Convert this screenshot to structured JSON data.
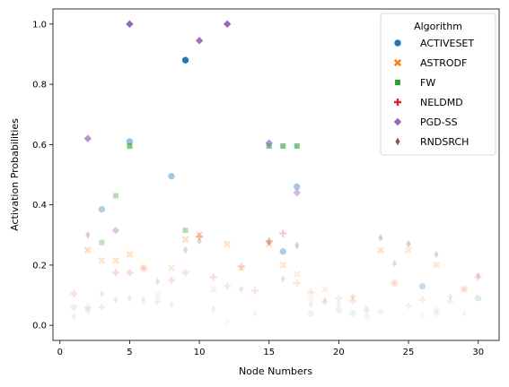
{
  "chart_data": {
    "type": "scatter",
    "xlabel": "Node Numbers",
    "ylabel": "Activation Probabilities",
    "xlim": [
      -0.5,
      31.5
    ],
    "ylim": [
      -0.05,
      1.05
    ],
    "xticks": [
      0,
      5,
      10,
      15,
      20,
      25,
      30
    ],
    "yticks": [
      0.0,
      0.2,
      0.4,
      0.6,
      0.8,
      1.0
    ],
    "grid": false,
    "legend": {
      "title": "Algorithm",
      "placement": "top-right"
    },
    "series": [
      {
        "name": "ACTIVESET",
        "marker": "circle",
        "color": "#1f77b4",
        "x": [
          1,
          2,
          3,
          5,
          8,
          9,
          16,
          17,
          18,
          20,
          21,
          22,
          26,
          27,
          30
        ],
        "y": [
          0.06,
          0.05,
          0.385,
          0.61,
          0.495,
          0.88,
          0.245,
          0.46,
          0.04,
          0.05,
          0.04,
          0.03,
          0.13,
          0.04,
          0.09
        ],
        "alpha": [
          0.1,
          0.08,
          0.35,
          0.45,
          0.4,
          1.0,
          0.35,
          0.4,
          0.08,
          0.08,
          0.08,
          0.06,
          0.25,
          0.06,
          0.15
        ]
      },
      {
        "name": "ASTRODF",
        "marker": "x",
        "color": "#ff7f0e",
        "x": [
          2,
          3,
          4,
          5,
          6,
          7,
          8,
          9,
          10,
          11,
          12,
          13,
          15,
          16,
          17,
          18,
          19,
          21,
          23,
          24,
          25,
          27,
          29
        ],
        "y": [
          0.25,
          0.215,
          0.215,
          0.235,
          0.19,
          0.1,
          0.19,
          0.285,
          0.3,
          0.12,
          0.27,
          0.19,
          0.27,
          0.2,
          0.17,
          0.09,
          0.12,
          0.09,
          0.25,
          0.14,
          0.25,
          0.2,
          0.12
        ],
        "alpha": [
          0.25,
          0.2,
          0.2,
          0.22,
          0.18,
          0.1,
          0.15,
          0.25,
          0.25,
          0.12,
          0.22,
          0.15,
          0.22,
          0.18,
          0.15,
          0.1,
          0.12,
          0.1,
          0.2,
          0.12,
          0.18,
          0.18,
          0.12
        ]
      },
      {
        "name": "FW",
        "marker": "square",
        "color": "#2ca02c",
        "x": [
          3,
          4,
          5,
          9,
          15,
          16,
          17
        ],
        "y": [
          0.275,
          0.43,
          0.595,
          0.315,
          0.595,
          0.595,
          0.595
        ],
        "alpha": [
          0.3,
          0.35,
          0.6,
          0.35,
          0.6,
          0.6,
          0.6
        ]
      },
      {
        "name": "NELDMD",
        "marker": "plus",
        "color": "#d62728",
        "x": [
          1,
          2,
          3,
          4,
          5,
          6,
          7,
          8,
          9,
          10,
          11,
          12,
          13,
          14,
          15,
          16,
          17,
          18,
          19,
          20,
          21,
          22,
          23,
          24,
          25,
          26,
          27,
          28,
          29,
          30
        ],
        "y": [
          0.105,
          0.06,
          0.06,
          0.175,
          0.175,
          0.19,
          0.08,
          0.15,
          0.175,
          0.295,
          0.16,
          0.13,
          0.195,
          0.115,
          0.28,
          0.305,
          0.14,
          0.11,
          0.08,
          0.09,
          0.08,
          0.05,
          0.045,
          0.14,
          0.065,
          0.085,
          0.05,
          0.08,
          0.12,
          0.16
        ],
        "alpha": [
          0.15,
          0.1,
          0.1,
          0.18,
          0.18,
          0.15,
          0.1,
          0.15,
          0.15,
          0.25,
          0.15,
          0.12,
          0.18,
          0.12,
          0.25,
          0.25,
          0.12,
          0.12,
          0.1,
          0.1,
          0.1,
          0.08,
          0.08,
          0.12,
          0.08,
          0.1,
          0.08,
          0.1,
          0.12,
          0.15
        ]
      },
      {
        "name": "PGD-SS",
        "marker": "diamond",
        "color": "#9467bd",
        "x": [
          2,
          4,
          5,
          10,
          12,
          15,
          17
        ],
        "y": [
          0.62,
          0.315,
          1.0,
          0.945,
          1.0,
          0.605,
          0.44
        ],
        "alpha": [
          0.7,
          0.35,
          1.0,
          0.9,
          1.0,
          0.7,
          0.45
        ]
      },
      {
        "name": "RNDSRCH",
        "marker": "thin-diamond",
        "color": "#8c564b",
        "x": [
          1,
          2,
          3,
          4,
          5,
          6,
          7,
          8,
          9,
          10,
          11,
          12,
          13,
          14,
          15,
          16,
          17,
          18,
          19,
          20,
          21,
          22,
          23,
          24,
          25,
          26,
          27,
          28,
          29,
          30
        ],
        "y": [
          0.03,
          0.3,
          0.105,
          0.085,
          0.09,
          0.085,
          0.145,
          0.07,
          0.25,
          0.28,
          0.055,
          0.01,
          0.12,
          0.04,
          0.275,
          0.155,
          0.265,
          0.07,
          0.08,
          0.07,
          0.095,
          0.055,
          0.29,
          0.205,
          0.27,
          0.03,
          0.235,
          0.095,
          0.04,
          0.165
        ],
        "alpha": [
          0.1,
          0.3,
          0.12,
          0.12,
          0.12,
          0.12,
          0.18,
          0.1,
          0.25,
          0.25,
          0.1,
          0.05,
          0.15,
          0.08,
          0.3,
          0.18,
          0.3,
          0.1,
          0.1,
          0.1,
          0.12,
          0.08,
          0.3,
          0.22,
          0.3,
          0.06,
          0.25,
          0.12,
          0.08,
          0.2
        ]
      }
    ]
  }
}
